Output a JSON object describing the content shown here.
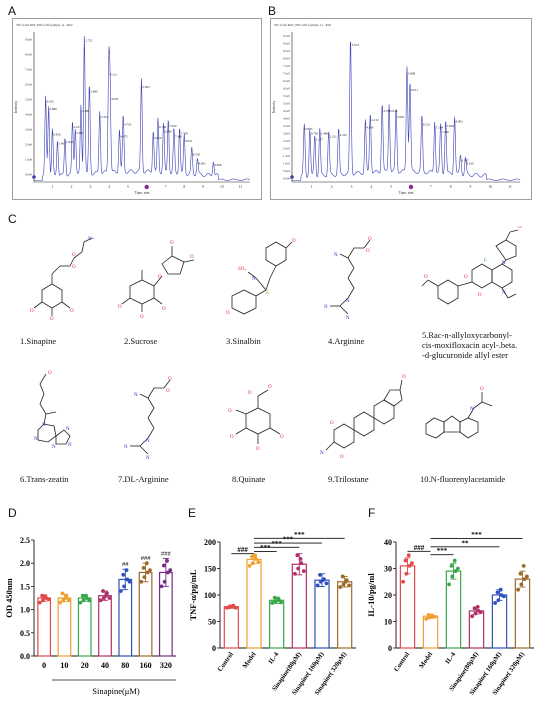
{
  "panels": {
    "a": "A",
    "b": "B",
    "c": "C",
    "d": "D",
    "e": "E",
    "f": "F"
  },
  "chromatograms": [
    {
      "id": "A",
      "header": "TIC from R02_P05.wiff (sample 1) - R02",
      "ylabel": "Intensity",
      "xlabel": "Time, min",
      "ymax": 10,
      "yticks": [
        "9.0e6",
        "8.0e6",
        "7.0e6",
        "6.0e6",
        "5.0e6",
        "4.0e6",
        "3.0e6",
        "2.0e6",
        "1.0e6",
        "0.0e0"
      ],
      "xticks": [
        "1",
        "2",
        "3",
        "4",
        "5",
        "6",
        "7",
        "8",
        "9",
        "10",
        "11"
      ],
      "trace_color": "#3b3fb8",
      "peaks": [
        {
          "t": 0.62,
          "h": 5.25,
          "label": "0.932"
        },
        {
          "t": 0.78,
          "h": 4.75,
          "label": "0.880"
        },
        {
          "t": 0.98,
          "h": 3.05,
          "label": "0.816"
        },
        {
          "t": 1.25,
          "h": 2.45,
          "label": "1.403"
        },
        {
          "t": 1.65,
          "h": 2.55,
          "label": "1.920"
        },
        {
          "t": 2.05,
          "h": 3.55,
          "label": "2.167"
        },
        {
          "t": 2.2,
          "h": 3.15,
          "label": "2.260"
        },
        {
          "t": 2.5,
          "h": 4.6,
          "label": "2.389"
        },
        {
          "t": 2.68,
          "h": 9.3,
          "label": "2.721"
        },
        {
          "t": 2.95,
          "h": 5.9,
          "label": "2.880"
        },
        {
          "t": 3.5,
          "h": 4.2,
          "label": "3.474"
        },
        {
          "t": 3.98,
          "h": 7.05,
          "label": "4.112"
        },
        {
          "t": 4.05,
          "h": 5.4,
          "label": "4.030"
        },
        {
          "t": 4.55,
          "h": 2.9,
          "label": "4.475"
        },
        {
          "t": 4.75,
          "h": 3.7,
          "label": "4.765"
        },
        {
          "t": 5.72,
          "h": 6.2,
          "label": "5.693"
        },
        {
          "t": 6.35,
          "h": 2.8,
          "label": "6.400"
        },
        {
          "t": 6.6,
          "h": 3.55,
          "label": "6.784"
        },
        {
          "t": 6.9,
          "h": 3.25,
          "label": "6.890"
        },
        {
          "t": 7.15,
          "h": 3.6,
          "label": "7.090"
        },
        {
          "t": 7.45,
          "h": 2.9,
          "label": "7.460"
        },
        {
          "t": 7.75,
          "h": 3.1,
          "label": "7.769"
        },
        {
          "t": 8.0,
          "h": 2.6,
          "label": "8.021"
        },
        {
          "t": 8.4,
          "h": 1.7,
          "label": "8.530"
        },
        {
          "t": 8.7,
          "h": 1.1,
          "label": "8.692"
        },
        {
          "t": 9.55,
          "h": 1.0,
          "label": "9.846"
        }
      ]
    },
    {
      "id": "B",
      "header": "TIC from R02_N05.wiff (sample 1) - R02",
      "ylabel": "Intensity",
      "xlabel": "Time, min",
      "ymax": 10,
      "yticks": [
        "9.5e5",
        "9.0e5",
        "8.5e5",
        "8.0e5",
        "7.5e5",
        "7.0e5",
        "6.5e5",
        "6.0e5",
        "5.5e5",
        "5.0e5",
        "4.5e5",
        "4.0e5",
        "3.5e5",
        "3.0e5",
        "2.5e5",
        "2.0e5",
        "1.5e5",
        "1.0e5",
        "5.0e4",
        "0.0e0"
      ],
      "xticks": [
        "1",
        "2",
        "3",
        "4",
        "5",
        "6",
        "7",
        "8",
        "9",
        "10",
        "11"
      ],
      "trace_color": "#3b3fb8",
      "peaks": [
        {
          "t": 0.62,
          "h": 3.4,
          "label": "0.895"
        },
        {
          "t": 0.9,
          "h": 3.1,
          "label": "0.782"
        },
        {
          "t": 1.15,
          "h": 2.7,
          "label": "1.337"
        },
        {
          "t": 1.4,
          "h": 3.1,
          "label": "1.489"
        },
        {
          "t": 1.85,
          "h": 2.9,
          "label": "2.211"
        },
        {
          "t": 2.35,
          "h": 3.0,
          "label": "2.532"
        },
        {
          "t": 2.95,
          "h": 9.0,
          "label": "3.074"
        },
        {
          "t": 3.7,
          "h": 3.5,
          "label": "4.006"
        },
        {
          "t": 3.95,
          "h": 4.0,
          "label": "4.132"
        },
        {
          "t": 4.55,
          "h": 4.6,
          "label": "4.784"
        },
        {
          "t": 4.9,
          "h": 4.6,
          "label": "5.014"
        },
        {
          "t": 5.25,
          "h": 4.2,
          "label": "4.965"
        },
        {
          "t": 5.8,
          "h": 7.1,
          "label": "5.888"
        },
        {
          "t": 5.95,
          "h": 6.0,
          "label": "6.011"
        },
        {
          "t": 6.55,
          "h": 3.7,
          "label": "6.531"
        },
        {
          "t": 7.2,
          "h": 3.5,
          "label": "7.134"
        },
        {
          "t": 7.5,
          "h": 3.2,
          "label": "7.480"
        },
        {
          "t": 7.75,
          "h": 3.6,
          "label": "7.660"
        },
        {
          "t": 8.2,
          "h": 3.9,
          "label": "8.082"
        },
        {
          "t": 8.5,
          "h": 1.3,
          "label": "8.587"
        },
        {
          "t": 8.75,
          "h": 1.1,
          "label": "8.610"
        }
      ]
    }
  ],
  "compounds": [
    {
      "label": "1.Sinapine"
    },
    {
      "label": "2.Sucrose"
    },
    {
      "label": "3.Sinalbin"
    },
    {
      "label": "4.Arginine"
    },
    {
      "label": "5.Rac-n-allyloxycarbonyl-\ncis-moxifloxacin acyl-.beta.\n-d-glucuronide allyl ester"
    },
    {
      "label": "6.Trans-zeatin"
    },
    {
      "label": "7.DL-Arginine"
    },
    {
      "label": "8.Quinate"
    },
    {
      "label": "9.Trilostane"
    },
    {
      "label": "10.N-fluorenylacetamide"
    }
  ],
  "chart_data": [
    {
      "id": "D",
      "type": "bar",
      "ylabel": "OD 450nm",
      "xlabel": "Sinapine(μM)",
      "categories": [
        "0",
        "10",
        "20",
        "40",
        "80",
        "160",
        "320"
      ],
      "values": [
        1.25,
        1.25,
        1.25,
        1.3,
        1.65,
        1.8,
        1.8
      ],
      "errors": [
        0.07,
        0.08,
        0.07,
        0.1,
        0.22,
        0.2,
        0.3
      ],
      "points": [
        [
          1.15,
          1.2,
          1.25,
          1.3,
          1.28,
          1.22
        ],
        [
          1.15,
          1.2,
          1.3,
          1.35,
          1.25,
          1.2
        ],
        [
          1.15,
          1.2,
          1.25,
          1.3,
          1.3,
          1.2
        ],
        [
          1.2,
          1.25,
          1.35,
          1.4,
          1.3,
          1.25
        ],
        [
          1.4,
          1.5,
          1.65,
          1.75,
          1.85,
          1.6
        ],
        [
          1.6,
          1.7,
          1.8,
          1.9,
          2.0,
          1.85
        ],
        [
          1.5,
          1.6,
          1.8,
          1.95,
          2.05,
          1.85
        ]
      ],
      "colors": [
        "#e04a4a",
        "#f0a030",
        "#3aa64a",
        "#b0306a",
        "#3050c0",
        "#9c6a2a",
        "#7a2a8a"
      ],
      "annotations": [
        "",
        "",
        "",
        "",
        "##",
        "###",
        "###"
      ],
      "ylim": [
        0,
        2.5
      ],
      "yticks": [
        "0.0",
        "0.5",
        "1.0",
        "1.5",
        "2.0",
        "2.5"
      ]
    },
    {
      "id": "E",
      "type": "bar",
      "ylabel": "TNF-α/pg/mL",
      "categories": [
        "Control",
        "Model",
        "IL-4",
        "Sinapine(80μM)",
        "Sinapine( 160μM)",
        "Sinapine( 320μM)"
      ],
      "values": [
        78,
        167,
        90,
        158,
        128,
        125
      ],
      "errors": [
        3,
        8,
        6,
        20,
        12,
        10
      ],
      "points": [
        [
          76,
          78,
          80,
          77,
          79,
          76
        ],
        [
          155,
          160,
          168,
          172,
          175,
          162
        ],
        [
          85,
          88,
          92,
          95,
          90,
          86
        ],
        [
          140,
          150,
          160,
          175,
          168,
          145
        ],
        [
          118,
          125,
          130,
          138,
          128,
          122
        ],
        [
          115,
          120,
          128,
          135,
          125,
          118
        ]
      ],
      "colors": [
        "#e04a4a",
        "#f0a030",
        "#3aa64a",
        "#b0306a",
        "#3050c0",
        "#9c6a2a"
      ],
      "sig": [
        "###",
        "***",
        "***",
        "***",
        "***"
      ],
      "ylim": [
        0,
        200
      ],
      "yticks": [
        "0",
        "50",
        "100",
        "150",
        "200"
      ]
    },
    {
      "id": "F",
      "type": "bar",
      "ylabel": "IL-10/pg/ml",
      "categories": [
        "Control",
        "Model",
        "IL-4",
        "Sinapine(80μM)",
        "Sinapine( 160μM)",
        "Sinapine( 320μM)"
      ],
      "values": [
        31,
        12,
        29,
        14,
        20,
        26
      ],
      "errors": [
        3,
        0.8,
        3,
        1.2,
        2,
        3
      ],
      "points": [
        [
          25,
          28,
          31,
          33,
          35,
          32
        ],
        [
          11,
          11.5,
          12,
          12.5,
          12,
          11.8
        ],
        [
          24,
          27,
          29,
          31,
          33,
          30
        ],
        [
          12,
          13,
          14,
          15,
          15.5,
          13.5
        ],
        [
          17,
          18,
          20,
          21,
          22,
          19.5
        ],
        [
          22,
          24,
          26,
          28,
          31,
          27
        ]
      ],
      "colors": [
        "#e04a4a",
        "#f0a030",
        "#3aa64a",
        "#b0306a",
        "#3050c0",
        "#9c6a2a"
      ],
      "sig": [
        "###",
        "***",
        "**",
        "***"
      ],
      "ylim": [
        0,
        40
      ],
      "yticks": [
        "0",
        "10",
        "20",
        "30",
        "40"
      ]
    }
  ]
}
